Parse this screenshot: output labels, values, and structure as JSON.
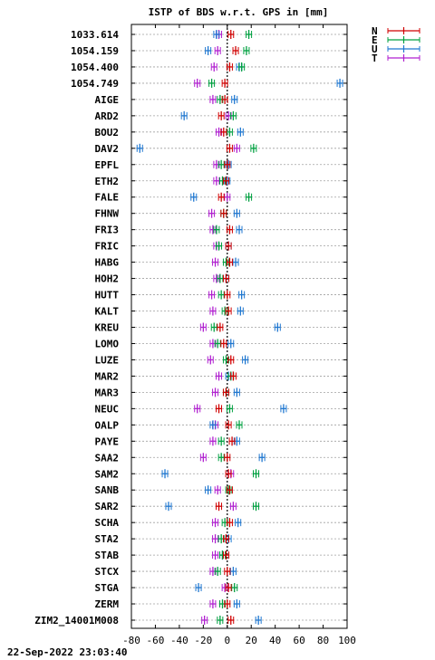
{
  "timestamp": "22-Sep-2022 23:03:40",
  "chart_data": {
    "type": "scatter",
    "title": "ISTP of BDS w.r.t. GPS in [mm]",
    "xlabel": "",
    "ylabel": "",
    "xlim": [
      -80,
      100
    ],
    "xticks": [
      -80,
      -60,
      -40,
      -20,
      0,
      20,
      40,
      60,
      80,
      100
    ],
    "x_grid": false,
    "y_grid": true,
    "legend_position": "top-right",
    "categories": [
      "1033.614",
      "1054.159",
      "1054.400",
      "1054.749",
      "AIGE",
      "ARD2",
      "BOU2",
      "DAV2",
      "EPFL",
      "ETH2",
      "FALE",
      "FHNW",
      "FRI3",
      "FRIC",
      "HABG",
      "HOH2",
      "HUTT",
      "KALT",
      "KREU",
      "LOMO",
      "LUZE",
      "MAR2",
      "MAR3",
      "NEUC",
      "OALP",
      "PAYE",
      "SAA2",
      "SAM2",
      "SANB",
      "SAR2",
      "SCHA",
      "STA2",
      "STAB",
      "STCX",
      "STGA",
      "ZERM",
      "ZIM2_14001M008"
    ],
    "series": [
      {
        "name": "N",
        "color": "#d00000",
        "values": [
          3,
          7,
          2,
          -2,
          -2,
          -5,
          -3,
          2,
          0,
          -1,
          -5,
          -3,
          2,
          1,
          2,
          -1,
          0,
          1,
          -6,
          -3,
          3,
          5,
          -1,
          -7,
          1,
          4,
          0,
          1,
          2,
          -7,
          2,
          -1,
          -1,
          0,
          1,
          0,
          3
        ]
      },
      {
        "name": "E",
        "color": "#00a040",
        "values": [
          18,
          16,
          12,
          -13,
          -6,
          5,
          2,
          22,
          -5,
          -4,
          18,
          -3,
          -9,
          -7,
          -1,
          -6,
          -5,
          -2,
          -11,
          -8,
          -1,
          3,
          -1,
          2,
          10,
          -5,
          -5,
          24,
          1,
          24,
          -2,
          -5,
          -4,
          -8,
          6,
          -4,
          -6
        ]
      },
      {
        "name": "U",
        "color": "#1f77d0",
        "values": [
          -9,
          -16,
          10,
          94,
          6,
          -36,
          11,
          -73,
          1,
          0,
          -28,
          8,
          10,
          1,
          7,
          -1,
          12,
          11,
          42,
          3,
          15,
          1,
          8,
          47,
          -12,
          8,
          29,
          -52,
          -16,
          -49,
          9,
          1,
          -4,
          5,
          -24,
          8,
          26
        ]
      },
      {
        "name": "T",
        "color": "#b020d0",
        "values": [
          -7,
          -8,
          -11,
          -25,
          -12,
          1,
          -7,
          8,
          -9,
          -9,
          0,
          -13,
          -12,
          -9,
          -10,
          -9,
          -13,
          -12,
          -20,
          -12,
          -14,
          -7,
          -10,
          -25,
          -10,
          -12,
          -20,
          3,
          -8,
          5,
          -10,
          -10,
          -10,
          -12,
          -2,
          -12,
          -19
        ]
      }
    ]
  }
}
